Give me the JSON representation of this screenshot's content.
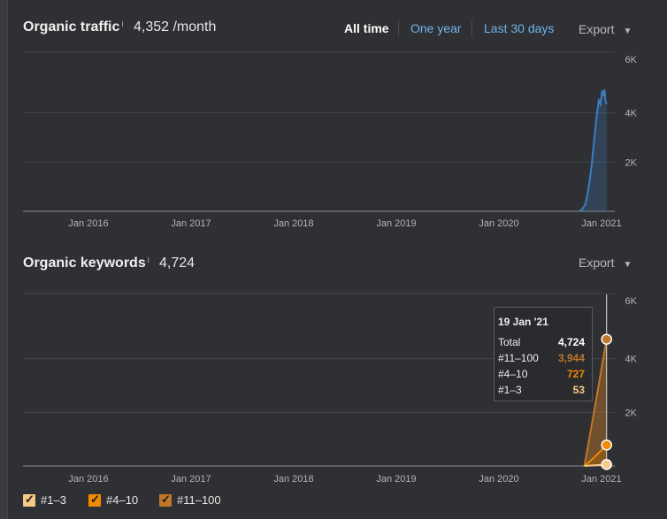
{
  "traffic": {
    "title": "Organic traffic",
    "info_icon": "i",
    "value": "4,352 /month",
    "ranges": [
      "All time",
      "One year",
      "Last 30 days"
    ],
    "active_range": "All time",
    "export_label": "Export",
    "chart_data": {
      "type": "area",
      "title": "Organic traffic",
      "y_ticks": [
        "6K",
        "4K",
        "2K"
      ],
      "x_ticks": [
        "Jan 2016",
        "Jan 2017",
        "Jan 2018",
        "Jan 2019",
        "Jan 2020",
        "Jan 2021"
      ],
      "ylim": [
        0,
        6000
      ],
      "grid": true,
      "series": [
        {
          "color": "#3b7dc4",
          "points": [
            [
              "2020-10-15",
              0
            ],
            [
              "2020-10-25",
              100
            ],
            [
              "2020-11-05",
              300
            ],
            [
              "2020-11-15",
              900
            ],
            [
              "2020-11-25",
              1700
            ],
            [
              "2020-12-05",
              2800
            ],
            [
              "2020-12-15",
              3900
            ],
            [
              "2020-12-22",
              4500
            ],
            [
              "2020-12-28",
              4350
            ],
            [
              "2021-01-03",
              4900
            ],
            [
              "2021-01-08",
              4700
            ],
            [
              "2021-01-12",
              4950
            ],
            [
              "2021-01-15",
              4500
            ],
            [
              "2021-01-19",
              4352
            ]
          ]
        }
      ]
    }
  },
  "keywords": {
    "title": "Organic keywords",
    "info_icon": "i",
    "value": "4,724",
    "export_label": "Export",
    "chart_data": {
      "type": "area",
      "title": "Organic keywords",
      "y_ticks": [
        "6K",
        "4K",
        "2K"
      ],
      "x_ticks": [
        "Jan 2016",
        "Jan 2017",
        "Jan 2018",
        "Jan 2019",
        "Jan 2020",
        "Jan 2021"
      ],
      "ylim": [
        0,
        6000
      ],
      "grid": true,
      "stacked": true,
      "series": [
        {
          "name": "#1–3",
          "color": "#f7c88a",
          "points": [
            [
              "2020-11-01",
              0
            ],
            [
              "2020-12-01",
              20
            ],
            [
              "2021-01-19",
              53
            ]
          ]
        },
        {
          "name": "#4–10",
          "color": "#f08a00",
          "points": [
            [
              "2020-11-01",
              0
            ],
            [
              "2020-12-01",
              250
            ],
            [
              "2021-01-19",
              727
            ]
          ]
        },
        {
          "name": "#11–100",
          "color": "#c0772a",
          "points": [
            [
              "2020-11-01",
              0
            ],
            [
              "2020-12-01",
              1500
            ],
            [
              "2021-01-19",
              3944
            ]
          ]
        }
      ]
    },
    "tooltip": {
      "date": "19 Jan '21",
      "rows": [
        {
          "label": "Total",
          "value": "4,724",
          "color": "#ffffff"
        },
        {
          "label": "#11–100",
          "value": "3,944",
          "color": "#c0772a"
        },
        {
          "label": "#4–10",
          "value": "727",
          "color": "#f08a00"
        },
        {
          "label": "#1–3",
          "value": "53",
          "color": "#f7c88a"
        }
      ]
    },
    "legend": [
      {
        "label": "#1–3",
        "color": "#f7c88a",
        "checked": true
      },
      {
        "label": "#4–10",
        "color": "#f08a00",
        "checked": true
      },
      {
        "label": "#11–100",
        "color": "#c0772a",
        "checked": true
      }
    ]
  }
}
